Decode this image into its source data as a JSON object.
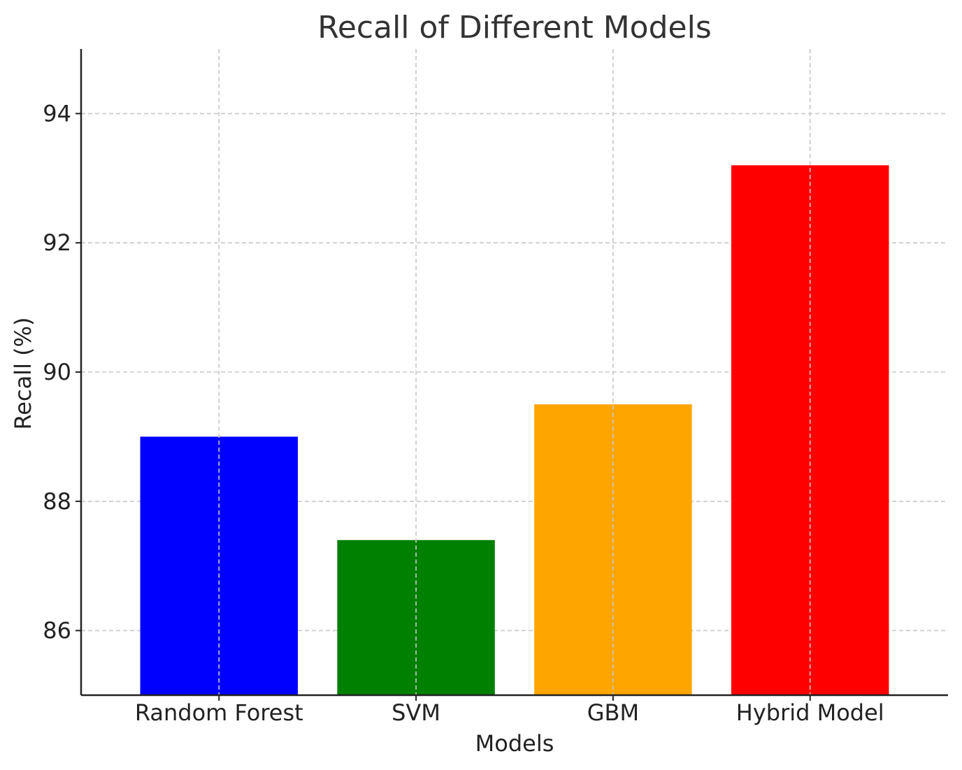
{
  "chart_data": {
    "type": "bar",
    "title": "Recall of Different Models",
    "xlabel": "Models",
    "ylabel": "Recall (%)",
    "categories": [
      "Random Forest",
      "SVM",
      "GBM",
      "Hybrid Model"
    ],
    "values": [
      89.0,
      87.4,
      89.5,
      93.2
    ],
    "colors": [
      "#0000ff",
      "#008000",
      "#ffa500",
      "#ff0000"
    ],
    "ylim": [
      85,
      95
    ],
    "yticks": [
      86,
      88,
      90,
      92,
      94
    ],
    "grid": true,
    "legend": "none"
  }
}
